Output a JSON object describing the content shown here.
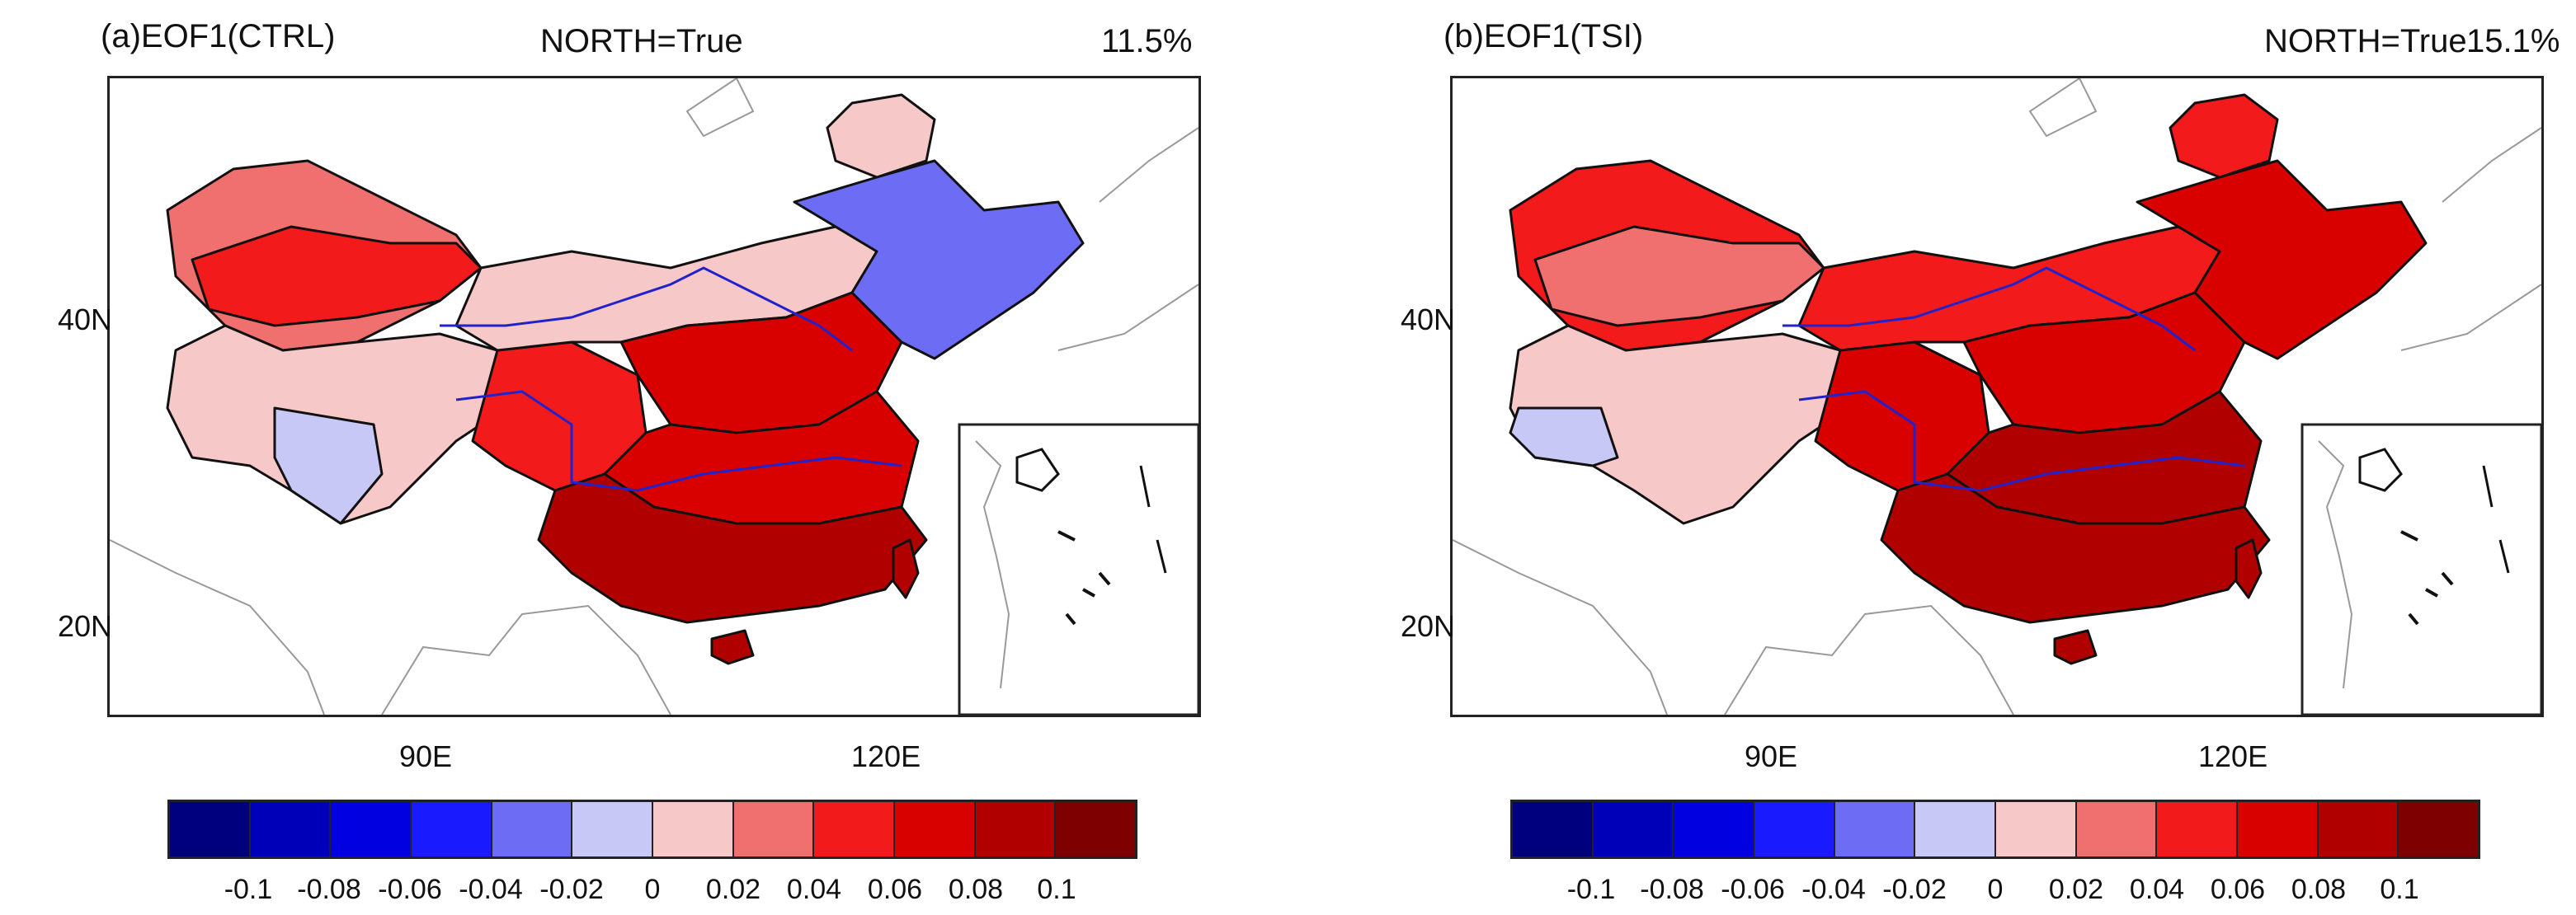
{
  "colors": {
    "scale": [
      "#00007f",
      "#0000b8",
      "#0000e0",
      "#1a1aff",
      "#6c6cf5",
      "#c8c8f7",
      "#f7c8c8",
      "#f07070",
      "#f21a1a",
      "#d90000",
      "#b00000",
      "#7f0000"
    ],
    "frame": "#222222",
    "river": "#2222cc",
    "coast": "#999999"
  },
  "panels": [
    {
      "title": "(a)EOF1(CTRL)",
      "north_label": "NORTH=True",
      "variance": "11.5%",
      "lat_labels": [
        "40N",
        "20N"
      ],
      "lon_labels": [
        "90E",
        "120E"
      ],
      "colorbar_labels": [
        "-0.1",
        "-0.08",
        "-0.06",
        "-0.04",
        "-0.02",
        "0",
        "0.02",
        "0.04",
        "0.06",
        "0.08",
        "0.1"
      ],
      "regions": {
        "west": 0.03,
        "northwest_band": 0.05,
        "tibet": 0.02,
        "tibet_south": -0.01,
        "sichuan": 0.04,
        "north_china": 0.06,
        "central": 0.07,
        "south": 0.09,
        "northeast": -0.03,
        "far_northeast": 0.02,
        "inner_mongolia": 0.02
      }
    },
    {
      "title": "(b)EOF1(TSI)",
      "north_label": "NORTH=True",
      "variance": "15.1%",
      "lat_labels": [
        "40N",
        "20N"
      ],
      "lon_labels": [
        "90E",
        "120E"
      ],
      "colorbar_labels": [
        "-0.1",
        "-0.08",
        "-0.06",
        "-0.04",
        "-0.02",
        "0",
        "0.02",
        "0.04",
        "0.06",
        "0.08",
        "0.1"
      ],
      "regions": {
        "west": 0.05,
        "northwest_band": 0.03,
        "tibet": 0.02,
        "tibet_south": -0.01,
        "sichuan": 0.07,
        "north_china": 0.07,
        "central": 0.09,
        "south": 0.08,
        "northeast": 0.06,
        "far_northeast": 0.05,
        "inner_mongolia": 0.04
      }
    }
  ]
}
